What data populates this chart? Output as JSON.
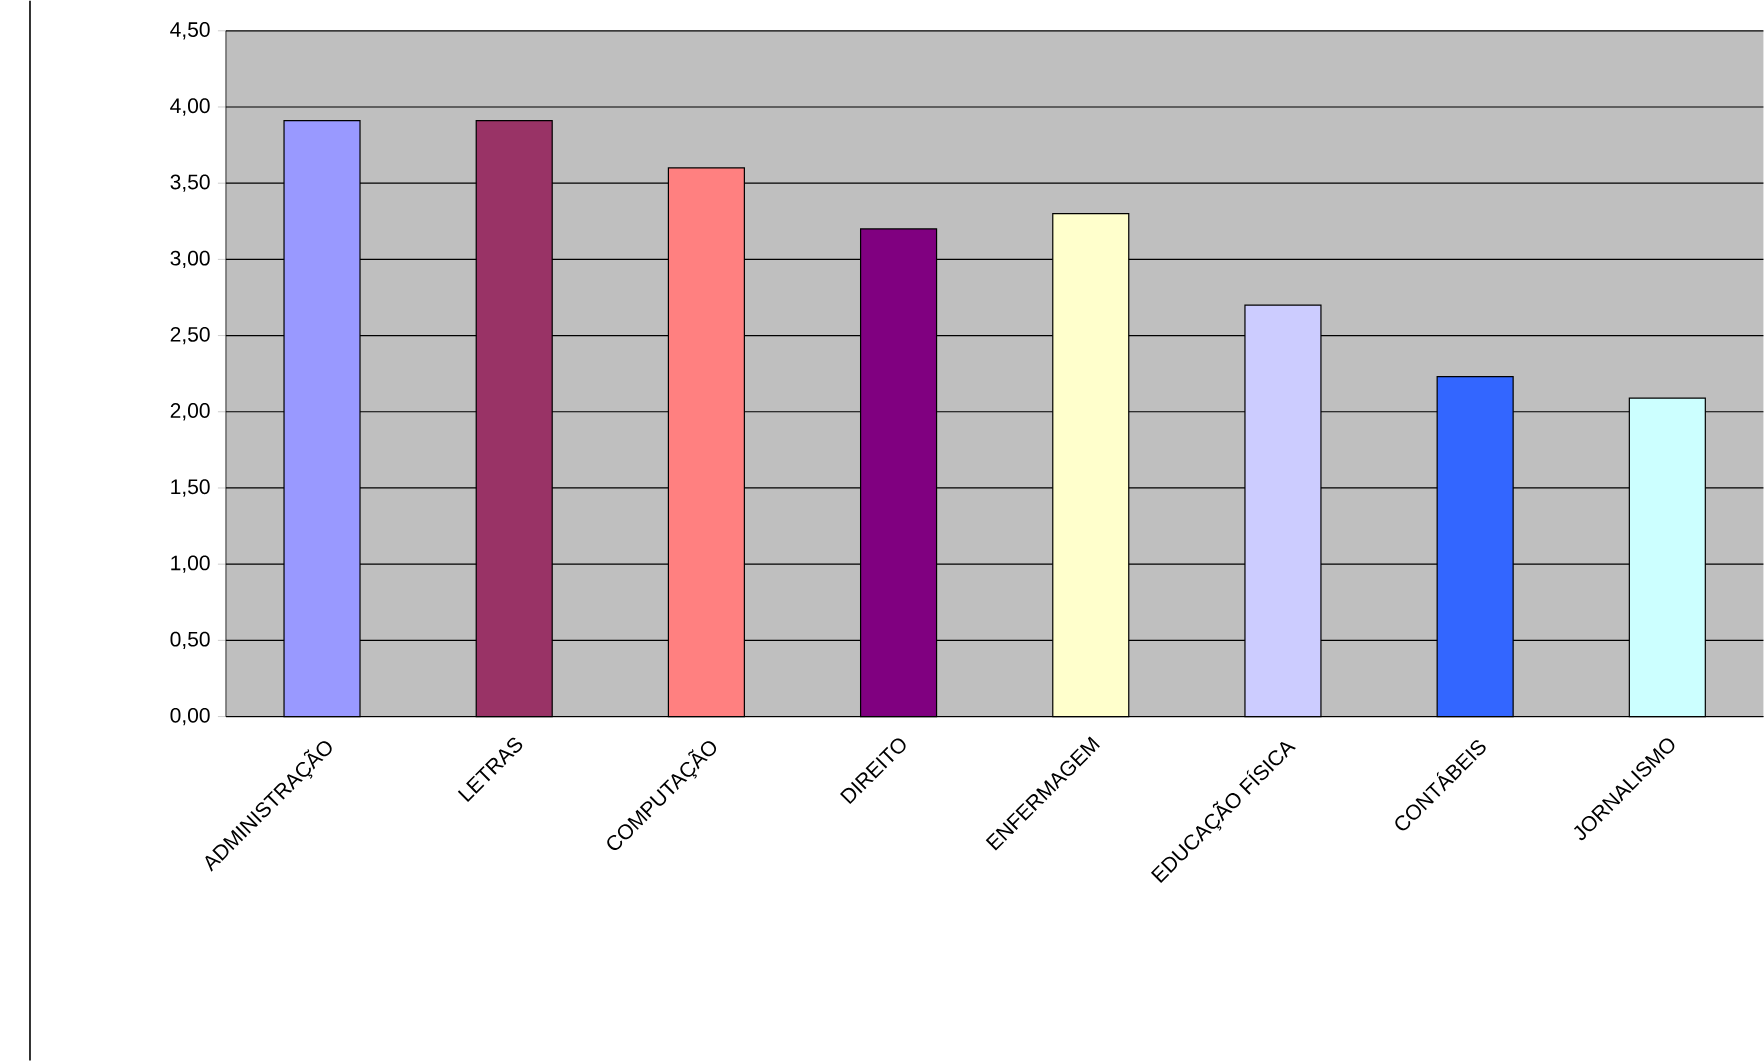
{
  "chart_data": {
    "type": "bar",
    "categories": [
      "ADMINISTRAÇÃO",
      "LETRAS",
      "COMPUTAÇÃO",
      "DIREITO",
      "ENFERMAGEM",
      "EDUCAÇÃO FÍSICA",
      "CONTÁBEIS",
      "JORNALISMO"
    ],
    "values": [
      3.91,
      3.91,
      3.6,
      3.2,
      3.3,
      2.7,
      2.23,
      2.09
    ],
    "colors": [
      "#9999ff",
      "#993366",
      "#ff8080",
      "#800080",
      "#ffffcc",
      "#ccccff",
      "#3366ff",
      "#ccffff"
    ],
    "ylim": [
      0,
      4.5
    ],
    "yticks": [
      {
        "value": 0,
        "label": "0,00"
      },
      {
        "value": 0.5,
        "label": "0,50"
      },
      {
        "value": 1,
        "label": "1,00"
      },
      {
        "value": 1.5,
        "label": "1,50"
      },
      {
        "value": 2,
        "label": "2,00"
      },
      {
        "value": 2.5,
        "label": "2,50"
      },
      {
        "value": 3,
        "label": "3,00"
      },
      {
        "value": 3.5,
        "label": "3,50"
      },
      {
        "value": 4,
        "label": "4,00"
      },
      {
        "value": 4.5,
        "label": "4,50"
      }
    ],
    "grid": "y"
  }
}
